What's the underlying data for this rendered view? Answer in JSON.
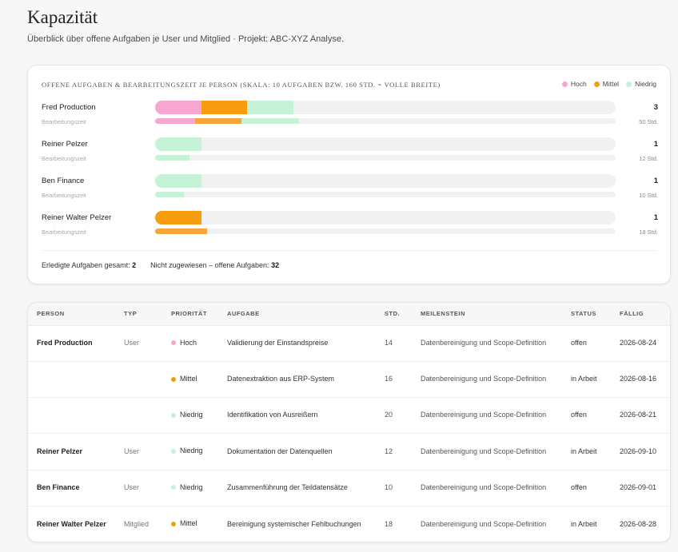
{
  "page": {
    "title": "Kapazität",
    "subtitle": "Überblick über offene Aufgaben je User und Mitglied · Projekt: ABC-XYZ Analyse."
  },
  "colors": {
    "hoch": "#f7a6d0",
    "mittel": "#f79c0e",
    "niedrig": "#c6f3d8",
    "hours_hoch": "#f7a6d0",
    "hours_mittel": "#f6a43c",
    "hours_niedrig": "#c6f3d8",
    "track": "#f1f1f1"
  },
  "capacity": {
    "title": "Offene Aufgaben & Bearbeitungszeit je Person (Skala: 10 Aufgaben bzw. 160 Std. = volle Breite)",
    "scale_tasks": 10,
    "scale_hours": 160,
    "legend": [
      {
        "key": "hoch",
        "label": "Hoch"
      },
      {
        "key": "mittel",
        "label": "Mittel"
      },
      {
        "key": "niedrig",
        "label": "Niedrig"
      }
    ],
    "hours_label": "Bearbeitungszeit",
    "persons": [
      {
        "name": "Fred Production",
        "tasks": {
          "hoch": 1,
          "mittel": 1,
          "niedrig": 1
        },
        "hours": {
          "hoch": 14,
          "mittel": 16,
          "niedrig": 20
        },
        "count": "3",
        "hours_total": "50 Std."
      },
      {
        "name": "Reiner Pelzer",
        "tasks": {
          "hoch": 0,
          "mittel": 0,
          "niedrig": 1
        },
        "hours": {
          "hoch": 0,
          "mittel": 0,
          "niedrig": 12
        },
        "count": "1",
        "hours_total": "12 Std."
      },
      {
        "name": "Ben Finance",
        "tasks": {
          "hoch": 0,
          "mittel": 0,
          "niedrig": 1
        },
        "hours": {
          "hoch": 0,
          "mittel": 0,
          "niedrig": 10
        },
        "count": "1",
        "hours_total": "10 Std."
      },
      {
        "name": "Reiner Walter Pelzer",
        "tasks": {
          "hoch": 0,
          "mittel": 1,
          "niedrig": 0
        },
        "hours": {
          "hoch": 0,
          "mittel": 18,
          "niedrig": 0
        },
        "count": "1",
        "hours_total": "18 Std."
      }
    ],
    "footer": {
      "done_label": "Erledigte Aufgaben gesamt:",
      "done_value": "2",
      "unassigned_label": "Nicht zugewiesen – offene Aufgaben:",
      "unassigned_value": "32"
    }
  },
  "table": {
    "headers": [
      "Person",
      "Typ",
      "Priorität",
      "Aufgabe",
      "Std.",
      "Meilenstein",
      "Status",
      "Fällig"
    ],
    "rows": [
      {
        "person": "Fred Production",
        "type": "User",
        "priority": "Hoch",
        "prio_key": "hoch",
        "task": "Validierung der Einstandspreise",
        "hours": "14",
        "milestone": "Datenbereinigung und Scope-Definition",
        "status": "offen",
        "due": "2026-08-24"
      },
      {
        "person": "",
        "type": "",
        "priority": "Mittel",
        "prio_key": "mittel",
        "task": "Datenextraktion aus ERP-System",
        "hours": "16",
        "milestone": "Datenbereinigung und Scope-Definition",
        "status": "in Arbeit",
        "due": "2026-08-16"
      },
      {
        "person": "",
        "type": "",
        "priority": "Niedrig",
        "prio_key": "niedrig",
        "task": "Identifikation von Ausreißern",
        "hours": "20",
        "milestone": "Datenbereinigung und Scope-Definition",
        "status": "offen",
        "due": "2026-08-21"
      },
      {
        "person": "Reiner Pelzer",
        "type": "User",
        "priority": "Niedrig",
        "prio_key": "niedrig",
        "task": "Dokumentation der Datenquellen",
        "hours": "12",
        "milestone": "Datenbereinigung und Scope-Definition",
        "status": "in Arbeit",
        "due": "2026-09-10"
      },
      {
        "person": "Ben Finance",
        "type": "User",
        "priority": "Niedrig",
        "prio_key": "niedrig",
        "task": "Zusammenführung der Teildatensätze",
        "hours": "10",
        "milestone": "Datenbereinigung und Scope-Definition",
        "status": "offen",
        "due": "2026-09-01"
      },
      {
        "person": "Reiner Walter Pelzer",
        "type": "Mitglied",
        "priority": "Mittel",
        "prio_key": "mittel",
        "task": "Bereinigung systemischer Fehlbuchungen",
        "hours": "18",
        "milestone": "Datenbereinigung und Scope-Definition",
        "status": "in Arbeit",
        "due": "2026-08-28"
      }
    ]
  }
}
